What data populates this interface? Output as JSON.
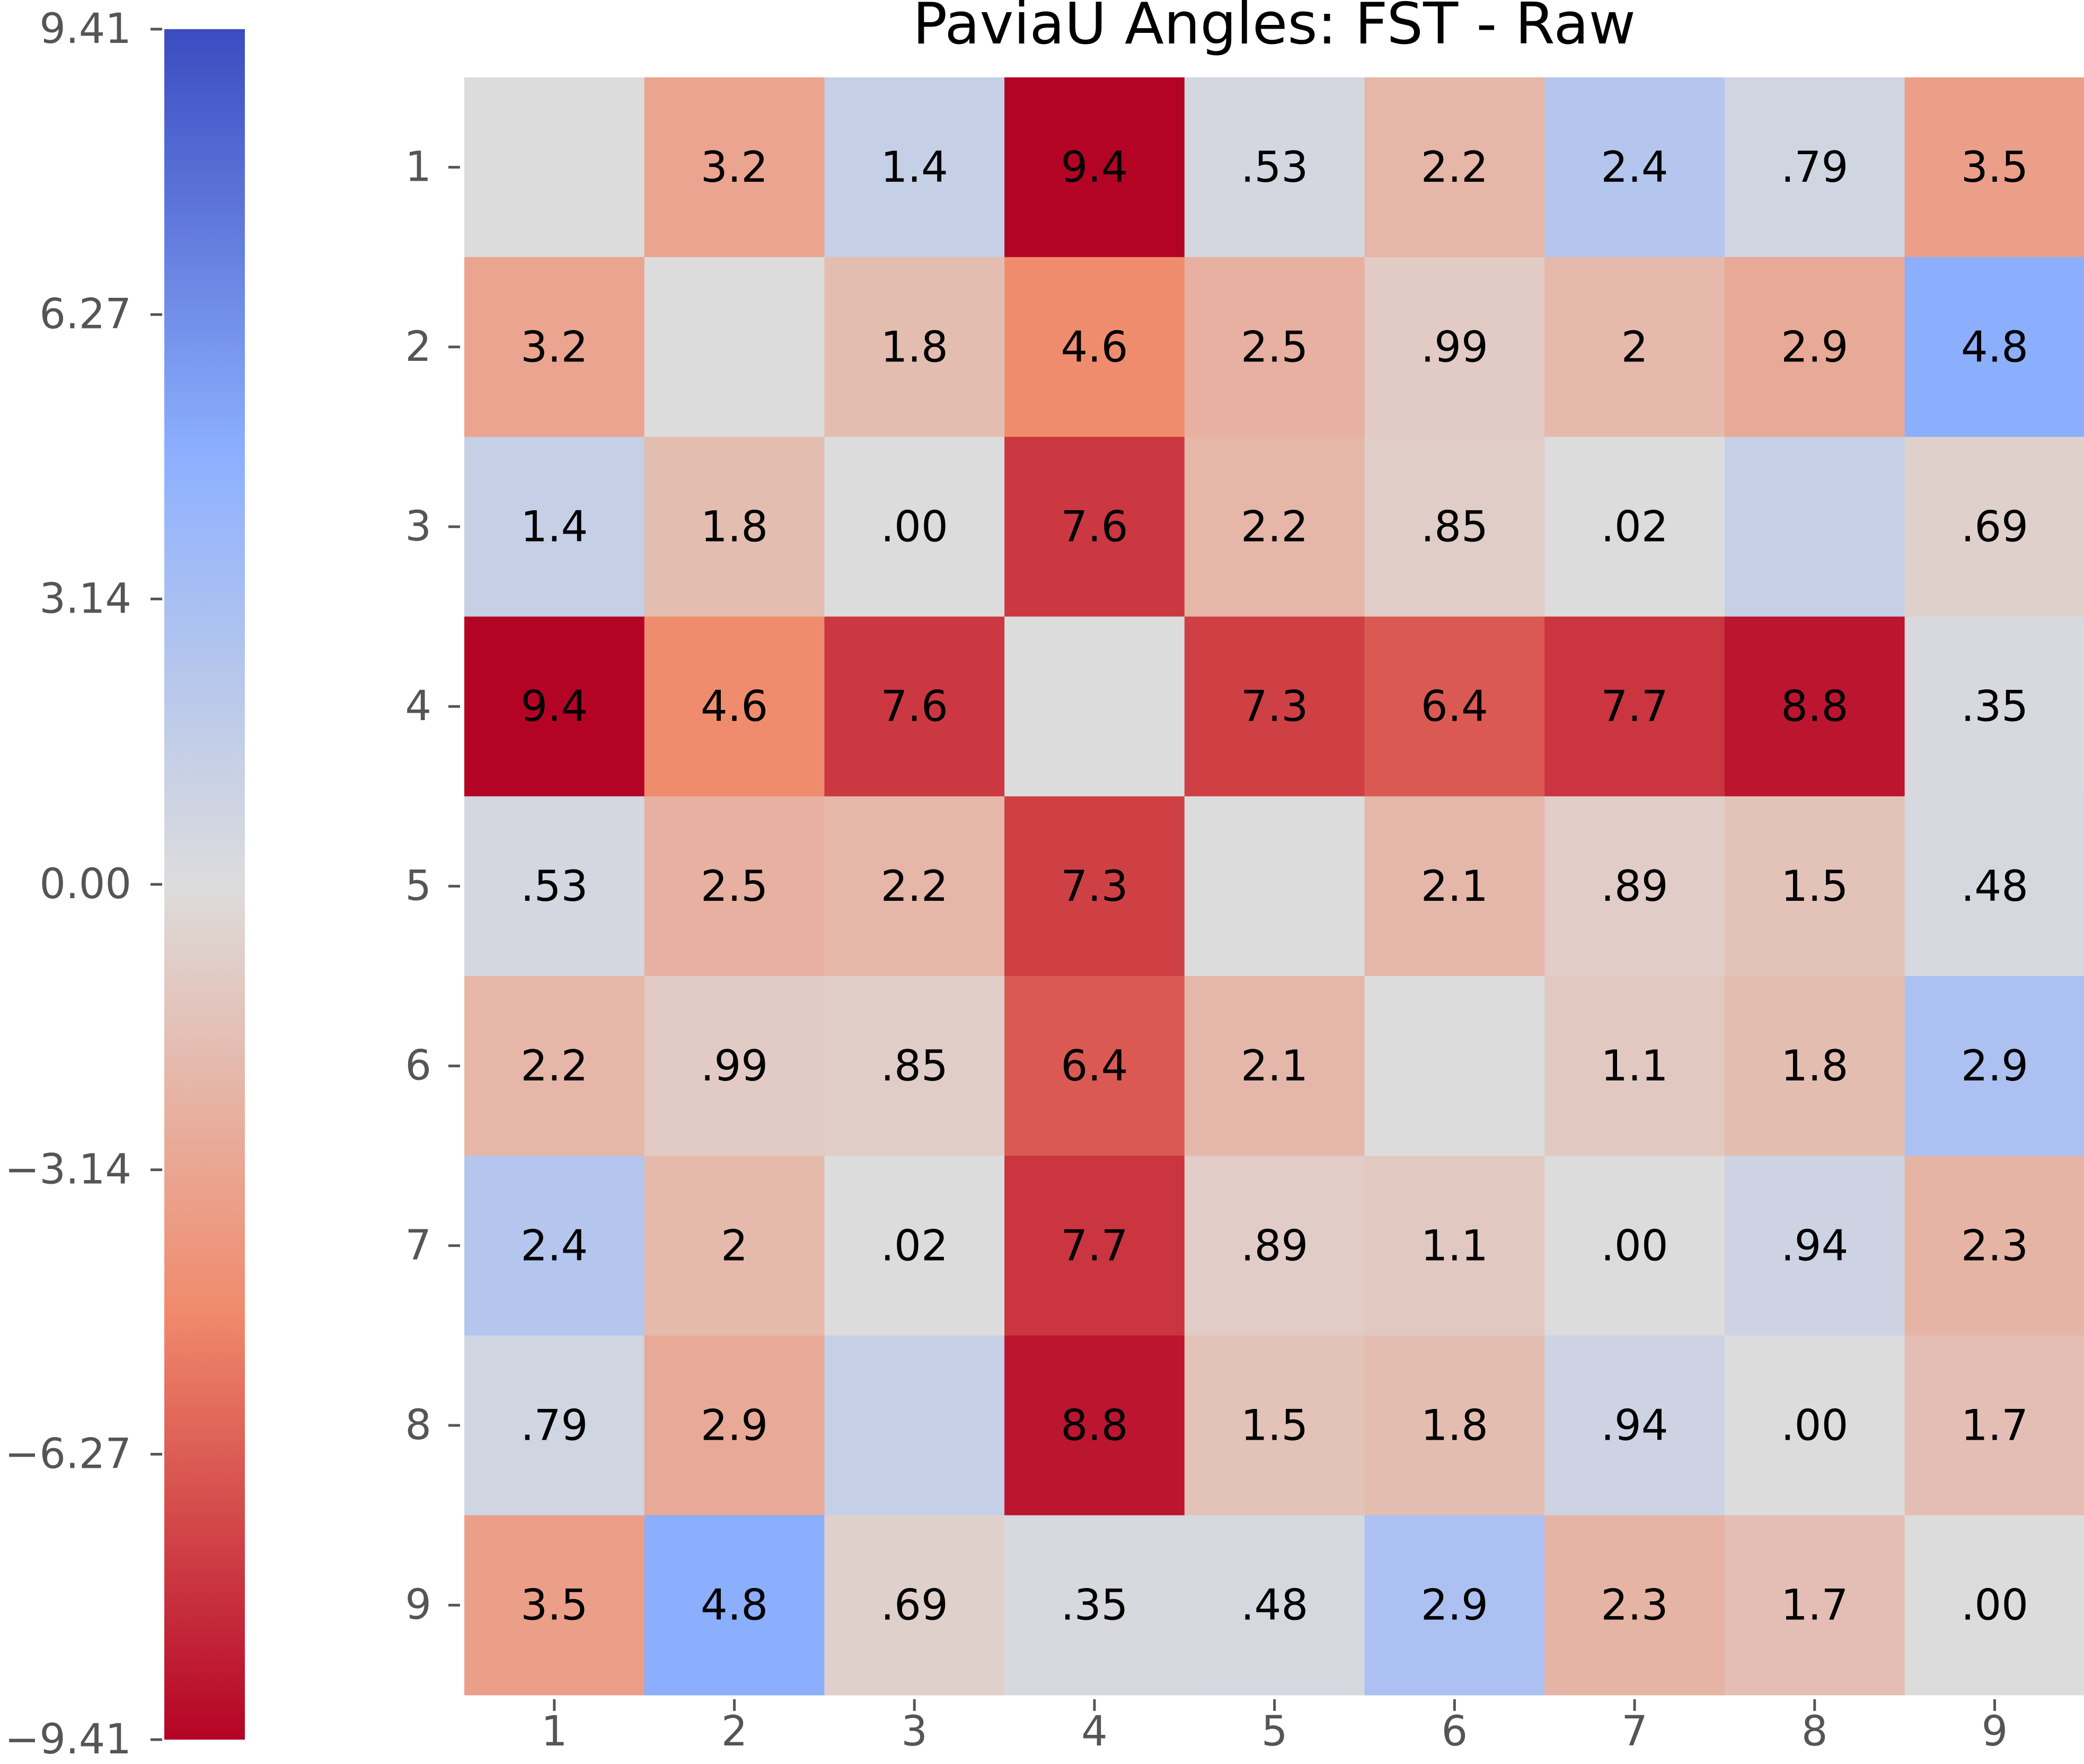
{
  "chart_data": {
    "type": "heatmap",
    "title": "PaviaU Angles: FST - Raw",
    "xlabel": "",
    "ylabel": "",
    "x_categories": [
      "1",
      "2",
      "3",
      "4",
      "5",
      "6",
      "7",
      "8",
      "9"
    ],
    "y_categories": [
      "1",
      "2",
      "3",
      "4",
      "5",
      "6",
      "7",
      "8",
      "9"
    ],
    "values": [
      [
        0.0,
        -3.2,
        1.4,
        -9.4,
        0.53,
        -2.2,
        2.4,
        0.79,
        -3.5
      ],
      [
        -3.2,
        0.0,
        -1.8,
        -4.6,
        -2.5,
        -0.99,
        -2.0,
        -2.9,
        4.8
      ],
      [
        1.4,
        -1.8,
        0.0,
        -7.6,
        -2.2,
        -0.85,
        0.02,
        1.4,
        -0.69
      ],
      [
        -9.4,
        -4.6,
        -7.6,
        0.0,
        -7.3,
        -6.4,
        -7.7,
        -8.8,
        0.35
      ],
      [
        0.53,
        -2.5,
        -2.2,
        -7.3,
        0.0,
        -2.1,
        -0.89,
        -1.5,
        0.48
      ],
      [
        -2.2,
        -0.99,
        -0.85,
        -6.4,
        -2.1,
        0.0,
        -1.1,
        -1.8,
        2.9
      ],
      [
        2.4,
        -2.0,
        0.02,
        -7.7,
        -0.89,
        -1.1,
        0.0,
        0.94,
        -2.3
      ],
      [
        0.79,
        -2.9,
        1.4,
        -8.8,
        -1.5,
        -1.8,
        0.94,
        0.0,
        -1.7
      ],
      [
        -3.5,
        4.8,
        -0.69,
        0.35,
        0.48,
        2.9,
        -2.3,
        -1.7,
        0.0
      ]
    ],
    "annotations": [
      [
        "",
        "3.2",
        "1.4",
        "9.4",
        ".53",
        "2.2",
        "2.4",
        ".79",
        "3.5"
      ],
      [
        "3.2",
        "",
        "1.8",
        "4.6",
        "2.5",
        ".99",
        "2",
        "2.9",
        "4.8"
      ],
      [
        "1.4",
        "1.8",
        ".00",
        "7.6",
        "2.2",
        ".85",
        ".02",
        "",
        ".69"
      ],
      [
        "9.4",
        "4.6",
        "7.6",
        "",
        "7.3",
        "6.4",
        "7.7",
        "8.8",
        ".35"
      ],
      [
        ".53",
        "2.5",
        "2.2",
        "7.3",
        "",
        "2.1",
        ".89",
        "1.5",
        ".48"
      ],
      [
        "2.2",
        ".99",
        ".85",
        "6.4",
        "2.1",
        "",
        "1.1",
        "1.8",
        "2.9"
      ],
      [
        "2.4",
        "2",
        ".02",
        "7.7",
        ".89",
        "1.1",
        ".00",
        ".94",
        "2.3"
      ],
      [
        ".79",
        "2.9",
        "",
        "8.8",
        "1.5",
        "1.8",
        ".94",
        ".00",
        "1.7"
      ],
      [
        "3.5",
        "4.8",
        ".69",
        ".35",
        ".48",
        "2.9",
        "2.3",
        "1.7",
        ".00"
      ]
    ],
    "colorbar": {
      "min": -9.41,
      "max": 9.41,
      "ticks": [
        9.41,
        6.27,
        3.14,
        0.0,
        -3.14,
        -6.27,
        -9.41
      ],
      "tick_labels": [
        "9.41",
        "6.27",
        "3.14",
        "0.00",
        "−3.14",
        "−6.27",
        "−9.41"
      ],
      "colormap": "coolwarm (reversed: positive = blue, negative = red)",
      "position": "left"
    },
    "colormap_stops": [
      "#b40426",
      "#f08a6c",
      "#dddcdc",
      "#8db0fe",
      "#3b4cc0"
    ],
    "colors": {
      "text": "#000000",
      "tick_label": "#555555",
      "tick_mark": "#555555"
    }
  }
}
